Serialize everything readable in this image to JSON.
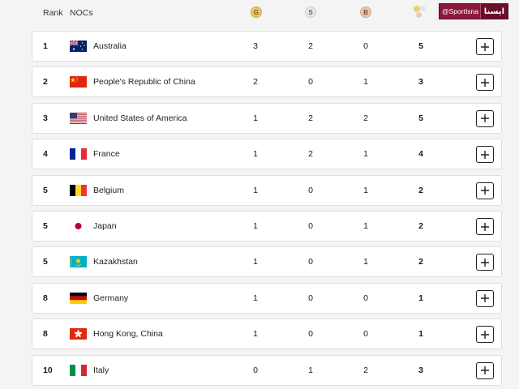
{
  "header": {
    "rank_label": "Rank",
    "nocs_label": "NOCs",
    "gold_label": "G",
    "silver_label": "S",
    "bronze_label": "B",
    "total_icon": "medals-total-icon"
  },
  "watermark": {
    "handle": "@SportIsna",
    "logo_text": "ایسنا"
  },
  "colors": {
    "gold": "#e9c46a",
    "silver": "#e6e6e6",
    "bronze": "#e8c8b0",
    "watermark_bg": "#8b1a3a"
  },
  "rows": [
    {
      "rank": "1",
      "flag": "australia-flag",
      "noc": "Australia",
      "gold": "3",
      "silver": "2",
      "bronze": "0",
      "total": "5"
    },
    {
      "rank": "2",
      "flag": "china-flag",
      "noc": "People's Republic of China",
      "gold": "2",
      "silver": "0",
      "bronze": "1",
      "total": "3"
    },
    {
      "rank": "3",
      "flag": "usa-flag",
      "noc": "United States of America",
      "gold": "1",
      "silver": "2",
      "bronze": "2",
      "total": "5"
    },
    {
      "rank": "4",
      "flag": "france-flag",
      "noc": "France",
      "gold": "1",
      "silver": "2",
      "bronze": "1",
      "total": "4"
    },
    {
      "rank": "5",
      "flag": "belgium-flag",
      "noc": "Belgium",
      "gold": "1",
      "silver": "0",
      "bronze": "1",
      "total": "2"
    },
    {
      "rank": "5",
      "flag": "japan-flag",
      "noc": "Japan",
      "gold": "1",
      "silver": "0",
      "bronze": "1",
      "total": "2"
    },
    {
      "rank": "5",
      "flag": "kazakhstan-flag",
      "noc": "Kazakhstan",
      "gold": "1",
      "silver": "0",
      "bronze": "1",
      "total": "2"
    },
    {
      "rank": "8",
      "flag": "germany-flag",
      "noc": "Germany",
      "gold": "1",
      "silver": "0",
      "bronze": "0",
      "total": "1"
    },
    {
      "rank": "8",
      "flag": "hong-kong-flag",
      "noc": "Hong Kong, China",
      "gold": "1",
      "silver": "0",
      "bronze": "0",
      "total": "1"
    },
    {
      "rank": "10",
      "flag": "italy-flag",
      "noc": "Italy",
      "gold": "0",
      "silver": "1",
      "bronze": "2",
      "total": "3"
    }
  ]
}
